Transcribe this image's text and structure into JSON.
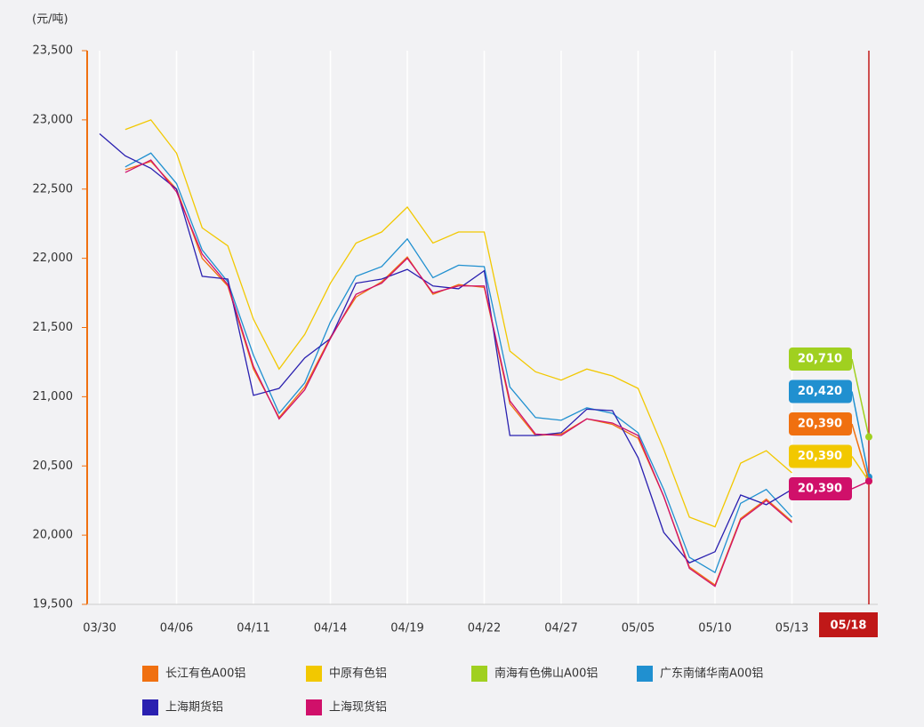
{
  "chart_data": {
    "type": "line",
    "y_unit": "(元/吨)",
    "categories": [
      "03/30",
      null,
      null,
      "04/06",
      null,
      null,
      "04/11",
      null,
      null,
      "04/14",
      null,
      null,
      "04/19",
      null,
      null,
      "04/22",
      null,
      null,
      "04/27",
      null,
      null,
      "05/05",
      null,
      null,
      "05/10",
      null,
      null,
      "05/13",
      null,
      null,
      "05/18"
    ],
    "ylim": [
      19500,
      23500
    ],
    "yticks": [
      {
        "value": 19500,
        "label": "19,500"
      },
      {
        "value": 20000,
        "label": "20,000"
      },
      {
        "value": 20500,
        "label": "20,500"
      },
      {
        "value": 21000,
        "label": "21,000"
      },
      {
        "value": 21500,
        "label": "21,500"
      },
      {
        "value": 22000,
        "label": "22,000"
      },
      {
        "value": 22500,
        "label": "22,500"
      },
      {
        "value": 23000,
        "label": "23,000"
      },
      {
        "value": 23500,
        "label": "23,500"
      }
    ],
    "grid": true,
    "series": [
      {
        "name": "长江有色A00铝",
        "color": "#f07010",
        "values": [
          null,
          22640,
          22700,
          22500,
          22000,
          21800,
          21200,
          20850,
          21070,
          21430,
          21720,
          21830,
          22010,
          21740,
          21810,
          21790,
          20950,
          20720,
          20730,
          20840,
          20800,
          20700,
          20280,
          19770,
          19640,
          20120,
          20260,
          20100,
          null,
          null,
          20390
        ],
        "value_labels": [
          null,
          null,
          null,
          null,
          null,
          null,
          null,
          null,
          null,
          null,
          null,
          null,
          null,
          null,
          null,
          null,
          null,
          null,
          null,
          null,
          null,
          null,
          null,
          null,
          null,
          null,
          null,
          null,
          null,
          null,
          "20,390"
        ]
      },
      {
        "name": "中原有色铝",
        "color": "#f2c800",
        "values": [
          null,
          22930,
          23000,
          22760,
          22220,
          22090,
          21560,
          21200,
          21450,
          21820,
          22110,
          22190,
          22370,
          22110,
          22190,
          22190,
          21330,
          21180,
          21120,
          21200,
          21150,
          21060,
          20620,
          20130,
          20060,
          20520,
          20610,
          20450,
          null,
          null,
          20390
        ],
        "value_labels": [
          null,
          null,
          null,
          null,
          null,
          null,
          null,
          null,
          null,
          null,
          null,
          null,
          null,
          null,
          null,
          null,
          null,
          null,
          null,
          null,
          null,
          null,
          null,
          null,
          null,
          null,
          null,
          null,
          null,
          null,
          "20,390"
        ]
      },
      {
        "name": "南海有色佛山A00铝",
        "color": "#a0d020",
        "values": [
          null,
          null,
          null,
          null,
          null,
          null,
          null,
          null,
          null,
          null,
          null,
          null,
          null,
          null,
          null,
          null,
          null,
          null,
          null,
          null,
          null,
          null,
          null,
          null,
          null,
          null,
          null,
          null,
          null,
          null,
          20710
        ],
        "value_labels": [
          null,
          null,
          null,
          null,
          null,
          null,
          null,
          null,
          null,
          null,
          null,
          null,
          null,
          null,
          null,
          null,
          null,
          null,
          null,
          null,
          null,
          null,
          null,
          null,
          null,
          null,
          null,
          null,
          null,
          null,
          "20,710"
        ]
      },
      {
        "name": "广东南储华南A00铝",
        "color": "#2090d0",
        "values": [
          null,
          22660,
          22760,
          22540,
          22060,
          21830,
          21300,
          20880,
          21100,
          21540,
          21870,
          21940,
          22140,
          21860,
          21950,
          21940,
          21070,
          20850,
          20830,
          20920,
          20880,
          20740,
          20330,
          19840,
          19730,
          20230,
          20330,
          20130,
          null,
          null,
          20420
        ],
        "value_labels": [
          null,
          null,
          null,
          null,
          null,
          null,
          null,
          null,
          null,
          null,
          null,
          null,
          null,
          null,
          null,
          null,
          null,
          null,
          null,
          null,
          null,
          null,
          null,
          null,
          null,
          null,
          null,
          null,
          null,
          null,
          "20,420"
        ]
      },
      {
        "name": "上海期货铝",
        "color": "#2a20b0",
        "values": [
          22900,
          22740,
          22650,
          22500,
          21870,
          21850,
          21010,
          21060,
          21280,
          21420,
          21820,
          21850,
          21920,
          21800,
          21780,
          21910,
          20720,
          20720,
          20740,
          20910,
          20900,
          20560,
          20020,
          19800,
          19880,
          20290,
          20220,
          20330,
          null,
          null,
          null
        ]
      },
      {
        "name": "上海现货铝",
        "color": "#d0106a",
        "values": [
          null,
          22620,
          22710,
          22480,
          22030,
          21810,
          21220,
          20840,
          21050,
          21420,
          21740,
          21820,
          22000,
          21750,
          21800,
          21800,
          20970,
          20730,
          20720,
          20840,
          20810,
          20720,
          20280,
          19760,
          19630,
          20110,
          20250,
          20090,
          null,
          null,
          20390
        ],
        "value_labels": [
          null,
          null,
          null,
          null,
          null,
          null,
          null,
          null,
          null,
          null,
          null,
          null,
          null,
          null,
          null,
          null,
          null,
          null,
          null,
          null,
          null,
          null,
          null,
          null,
          null,
          null,
          null,
          null,
          null,
          null,
          "20,390"
        ]
      }
    ]
  }
}
